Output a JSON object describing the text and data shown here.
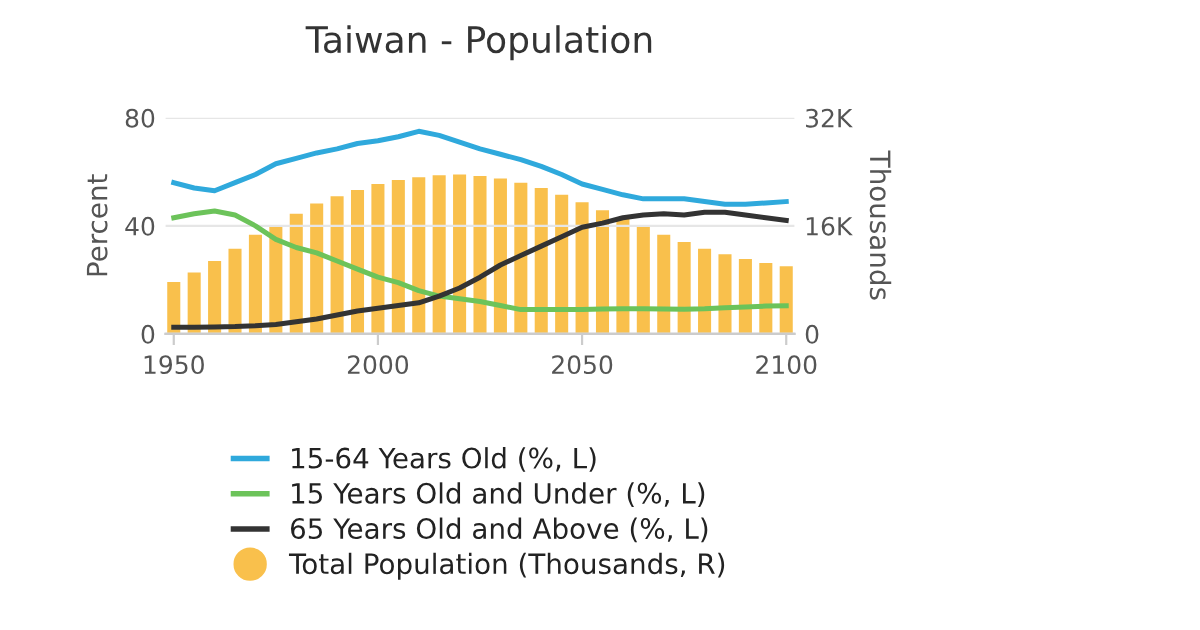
{
  "chart_data": {
    "type": "line",
    "title": "Taiwan - Population",
    "ylabel": "Percent",
    "y2label": "Thousands",
    "x": [
      1950,
      1955,
      1960,
      1965,
      1970,
      1975,
      1980,
      1985,
      1990,
      1995,
      2000,
      2005,
      2010,
      2015,
      2020,
      2025,
      2030,
      2035,
      2040,
      2045,
      2050,
      2055,
      2060,
      2065,
      2070,
      2075,
      2080,
      2085,
      2090,
      2095,
      2100
    ],
    "series": [
      {
        "name": "15-64 Years Old (%, L)",
        "color": "#2fa9dc",
        "values": [
          56,
          54,
          53,
          56,
          59,
          63,
          65,
          67,
          68.5,
          70.5,
          71.5,
          73,
          75,
          73.5,
          71,
          68.5,
          66.5,
          64.5,
          62,
          59,
          55.5,
          53.5,
          51.5,
          50,
          50,
          50,
          49,
          48,
          48,
          48.5,
          49
        ]
      },
      {
        "name": "15 Years Old and Under (%, L)",
        "color": "#6cc35a",
        "values": [
          43,
          44.5,
          45.5,
          44,
          40,
          35,
          32,
          30,
          27,
          24,
          21,
          19,
          16,
          14,
          13,
          12,
          10.5,
          9,
          9,
          9,
          9,
          9.2,
          9.3,
          9.3,
          9.2,
          9.1,
          9.3,
          9.7,
          10,
          10.3,
          10.4
        ]
      },
      {
        "name": "65 Years Old and Above (%, L)",
        "color": "#333333",
        "values": [
          2.5,
          2.5,
          2.6,
          2.7,
          3,
          3.5,
          4.5,
          5.5,
          7,
          8.5,
          9.5,
          10.5,
          11.5,
          14,
          17,
          21,
          25.5,
          29,
          32.5,
          36,
          39.5,
          41,
          43,
          44,
          44.5,
          44,
          45,
          45,
          44,
          43,
          42
        ]
      },
      {
        "name": "Total Population (Thousands, R)",
        "type": "bar",
        "axis": "y2",
        "color": "#f9c04c",
        "values": [
          7700,
          9100,
          10800,
          12600,
          14700,
          16100,
          17800,
          19300,
          20400,
          21300,
          22200,
          22800,
          23200,
          23500,
          23600,
          23400,
          23000,
          22400,
          21600,
          20600,
          19500,
          18300,
          17100,
          15900,
          14700,
          13600,
          12600,
          11800,
          11100,
          10500,
          10000
        ]
      }
    ],
    "xlim": [
      1948,
      2102
    ],
    "xticks": [
      1950,
      2000,
      2050,
      2100
    ],
    "ylim": [
      0,
      80
    ],
    "yticks": [
      0,
      40,
      80
    ],
    "y2lim": [
      0,
      32000
    ],
    "y2ticks": [
      {
        "value": 0,
        "label": "0"
      },
      {
        "value": 16000,
        "label": "16K"
      },
      {
        "value": 32000,
        "label": "32K"
      }
    ],
    "grid": "y",
    "legend": "bottom"
  }
}
